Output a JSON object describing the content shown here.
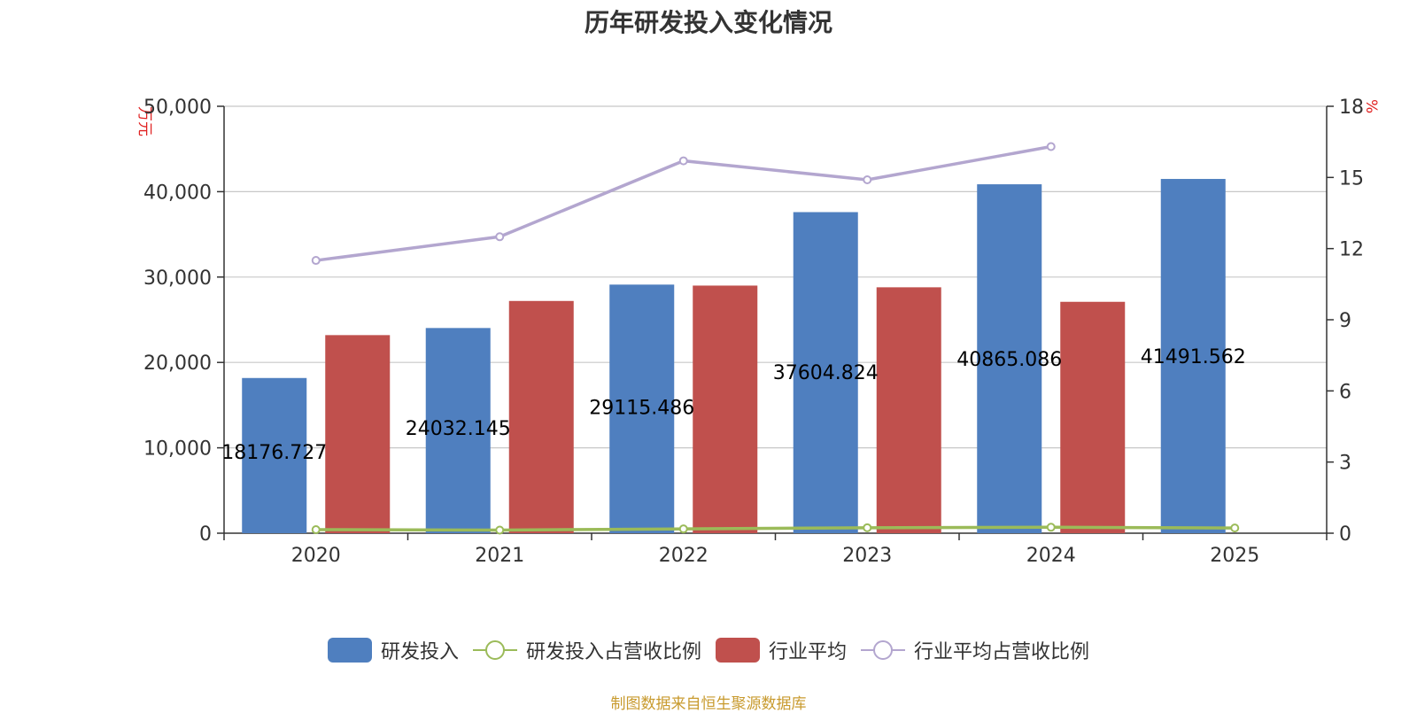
{
  "chart_data": {
    "type": "bar",
    "title": "历年研发投入变化情况",
    "categories": [
      "2020",
      "2021",
      "2022",
      "2023",
      "2024",
      "2025"
    ],
    "y_left": {
      "unit": "万元",
      "min": 0,
      "max": 50000,
      "ticks": [
        "0",
        "10,000",
        "20,000",
        "30,000",
        "40,000",
        "50,000"
      ]
    },
    "y_right": {
      "unit": "%",
      "min": 0,
      "max": 18,
      "ticks": [
        "0",
        "3",
        "6",
        "9",
        "12",
        "15",
        "18"
      ]
    },
    "series": [
      {
        "name": "研发投入",
        "kind": "bar",
        "axis": "left",
        "color": "#4f7fbf",
        "values": [
          18176.727,
          24032.145,
          29115.486,
          37604.824,
          40865.086,
          41491.562
        ],
        "labels": [
          "18176.727",
          "24032.145",
          "29115.486",
          "37604.824",
          "40865.086",
          "41491.562"
        ]
      },
      {
        "name": "行业平均",
        "kind": "bar",
        "axis": "left",
        "color": "#c0504d",
        "values": [
          23200,
          27200,
          29000,
          28800,
          27100,
          null
        ]
      },
      {
        "name": "研发投入占营收比例",
        "kind": "line",
        "axis": "right",
        "color": "#9bbb59",
        "values": [
          0.15,
          0.13,
          0.18,
          0.23,
          0.25,
          0.22
        ]
      },
      {
        "name": "行业平均占营收比例",
        "kind": "line",
        "axis": "right",
        "color": "#b3a6cf",
        "values": [
          11.5,
          12.5,
          15.7,
          14.9,
          16.3,
          null
        ]
      }
    ],
    "grid": true,
    "legend": "bottom"
  },
  "source": "制图数据来自恒生聚源数据库"
}
